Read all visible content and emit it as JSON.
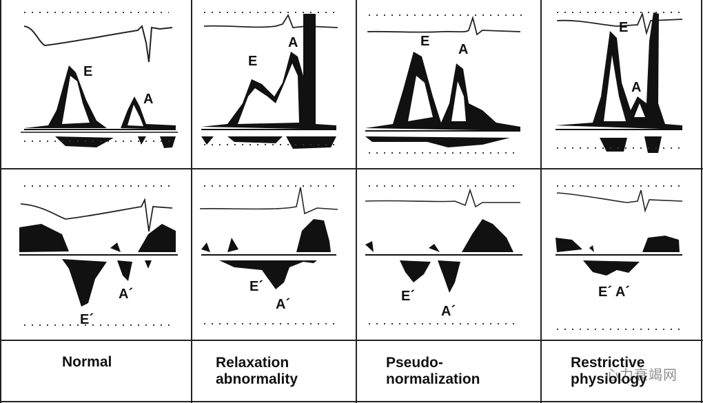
{
  "columns": [
    {
      "caption_lines": [
        "Normal"
      ],
      "top": {
        "e_label": "E",
        "a_label": "A"
      },
      "bottom": {
        "e_label": "E´",
        "a_label": "A´"
      }
    },
    {
      "caption_lines": [
        "Relaxation",
        "abnormality"
      ],
      "top": {
        "e_label": "E",
        "a_label": "A"
      },
      "bottom": {
        "e_label": "E´",
        "a_label": "A´"
      }
    },
    {
      "caption_lines": [
        "Pseudo-",
        "normalization"
      ],
      "top": {
        "e_label": "E",
        "a_label": "A"
      },
      "bottom": {
        "e_label": "E´",
        "a_label": "A´"
      }
    },
    {
      "caption_lines": [
        "Restrictive",
        "physiology"
      ],
      "top": {
        "e_label": "E",
        "a_label": "A"
      },
      "bottom": {
        "e_label": "E´ A´",
        "a_label": ""
      }
    }
  ],
  "watermark": "心力衰竭网",
  "colors": {
    "ink": "#111111",
    "background": "#ffffff"
  }
}
